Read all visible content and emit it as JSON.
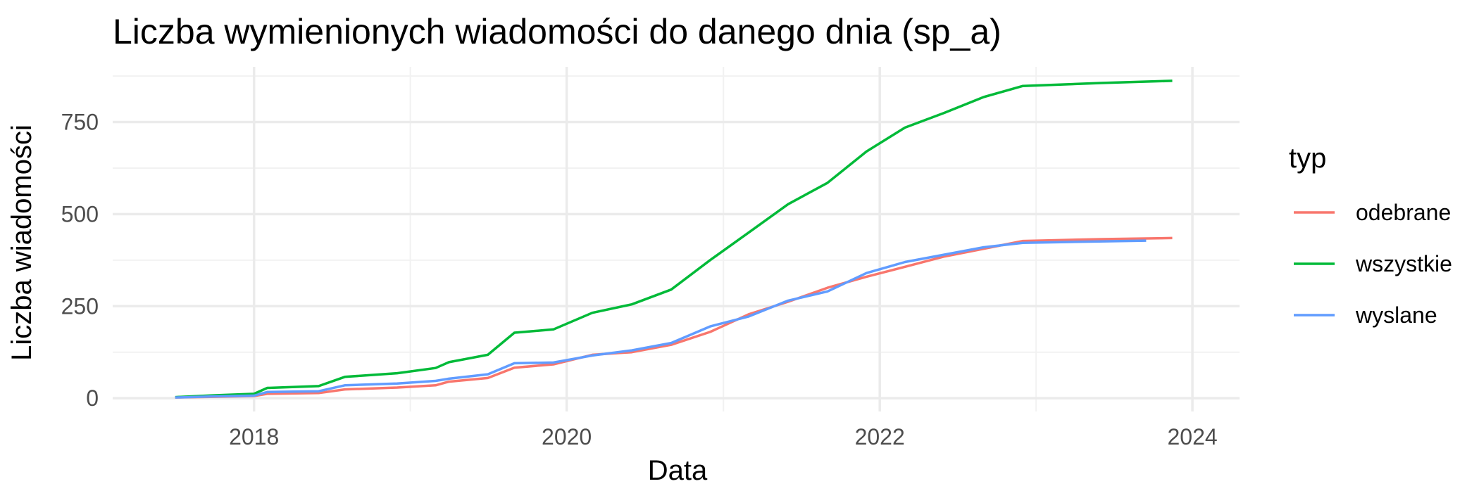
{
  "chart_data": {
    "type": "line",
    "title": "Liczba wymienionych wiadomości do danego dnia (sp_a)",
    "xlabel": "Data",
    "ylabel": "Liczba wiadomości",
    "x_is_date": true,
    "xlim": [
      "2017-02-05",
      "2024-04-20"
    ],
    "ylim": [
      -36,
      900
    ],
    "x_ticks": [
      {
        "value": "2018-01-01",
        "label": "2018"
      },
      {
        "value": "2020-01-01",
        "label": "2020"
      },
      {
        "value": "2022-01-01",
        "label": "2022"
      },
      {
        "value": "2024-01-01",
        "label": "2024"
      }
    ],
    "x_minor_ticks": [
      "2019-01-01",
      "2021-01-01",
      "2023-01-01"
    ],
    "y_ticks": [
      {
        "value": 0,
        "label": "0"
      },
      {
        "value": 250,
        "label": "250"
      },
      {
        "value": 500,
        "label": "500"
      },
      {
        "value": 750,
        "label": "750"
      }
    ],
    "y_minor_ticks": [
      125,
      375,
      625,
      875
    ],
    "grid": true,
    "legend": {
      "title": "typ",
      "position": "right"
    },
    "series": [
      {
        "name": "odebrane",
        "color": "#F8766D",
        "points": [
          [
            "2017-07-01",
            2
          ],
          [
            "2017-10-01",
            4
          ],
          [
            "2018-01-01",
            6
          ],
          [
            "2018-02-01",
            12
          ],
          [
            "2018-06-01",
            14
          ],
          [
            "2018-08-01",
            24
          ],
          [
            "2018-12-01",
            29
          ],
          [
            "2019-03-01",
            35
          ],
          [
            "2019-04-01",
            45
          ],
          [
            "2019-07-01",
            55
          ],
          [
            "2019-09-01",
            83
          ],
          [
            "2019-12-01",
            92
          ],
          [
            "2020-03-01",
            118
          ],
          [
            "2020-06-01",
            125
          ],
          [
            "2020-09-01",
            145
          ],
          [
            "2020-12-01",
            180
          ],
          [
            "2021-03-01",
            228
          ],
          [
            "2021-06-01",
            262
          ],
          [
            "2021-09-01",
            300
          ],
          [
            "2021-12-01",
            330
          ],
          [
            "2022-03-01",
            357
          ],
          [
            "2022-06-01",
            385
          ],
          [
            "2022-09-01",
            406
          ],
          [
            "2022-12-01",
            427
          ],
          [
            "2023-06-01",
            432
          ],
          [
            "2023-11-15",
            435
          ]
        ]
      },
      {
        "name": "wszystkie",
        "color": "#00BA38",
        "points": [
          [
            "2017-07-01",
            3
          ],
          [
            "2017-10-01",
            8
          ],
          [
            "2018-01-01",
            12
          ],
          [
            "2018-02-01",
            28
          ],
          [
            "2018-06-01",
            33
          ],
          [
            "2018-08-01",
            58
          ],
          [
            "2018-12-01",
            68
          ],
          [
            "2019-03-01",
            82
          ],
          [
            "2019-04-01",
            98
          ],
          [
            "2019-07-01",
            118
          ],
          [
            "2019-09-01",
            178
          ],
          [
            "2019-12-01",
            187
          ],
          [
            "2020-03-01",
            232
          ],
          [
            "2020-06-01",
            255
          ],
          [
            "2020-09-01",
            295
          ],
          [
            "2020-12-01",
            375
          ],
          [
            "2021-03-01",
            450
          ],
          [
            "2021-06-01",
            527
          ],
          [
            "2021-09-01",
            585
          ],
          [
            "2021-12-01",
            670
          ],
          [
            "2022-03-01",
            735
          ],
          [
            "2022-06-01",
            775
          ],
          [
            "2022-09-01",
            818
          ],
          [
            "2022-12-01",
            848
          ],
          [
            "2023-06-01",
            856
          ],
          [
            "2023-11-15",
            862
          ]
        ]
      },
      {
        "name": "wyslane",
        "color": "#619CFF",
        "points": [
          [
            "2017-07-01",
            2
          ],
          [
            "2017-10-01",
            5
          ],
          [
            "2018-01-01",
            7
          ],
          [
            "2018-02-01",
            17
          ],
          [
            "2018-06-01",
            19
          ],
          [
            "2018-08-01",
            35
          ],
          [
            "2018-12-01",
            40
          ],
          [
            "2019-03-01",
            47
          ],
          [
            "2019-04-01",
            53
          ],
          [
            "2019-07-01",
            65
          ],
          [
            "2019-09-01",
            95
          ],
          [
            "2019-12-01",
            97
          ],
          [
            "2020-03-01",
            116
          ],
          [
            "2020-06-01",
            130
          ],
          [
            "2020-09-01",
            150
          ],
          [
            "2020-12-01",
            195
          ],
          [
            "2021-03-01",
            222
          ],
          [
            "2021-06-01",
            265
          ],
          [
            "2021-09-01",
            290
          ],
          [
            "2021-12-01",
            340
          ],
          [
            "2022-03-01",
            370
          ],
          [
            "2022-06-01",
            390
          ],
          [
            "2022-09-01",
            410
          ],
          [
            "2022-12-01",
            422
          ],
          [
            "2023-09-15",
            428
          ]
        ]
      }
    ]
  }
}
